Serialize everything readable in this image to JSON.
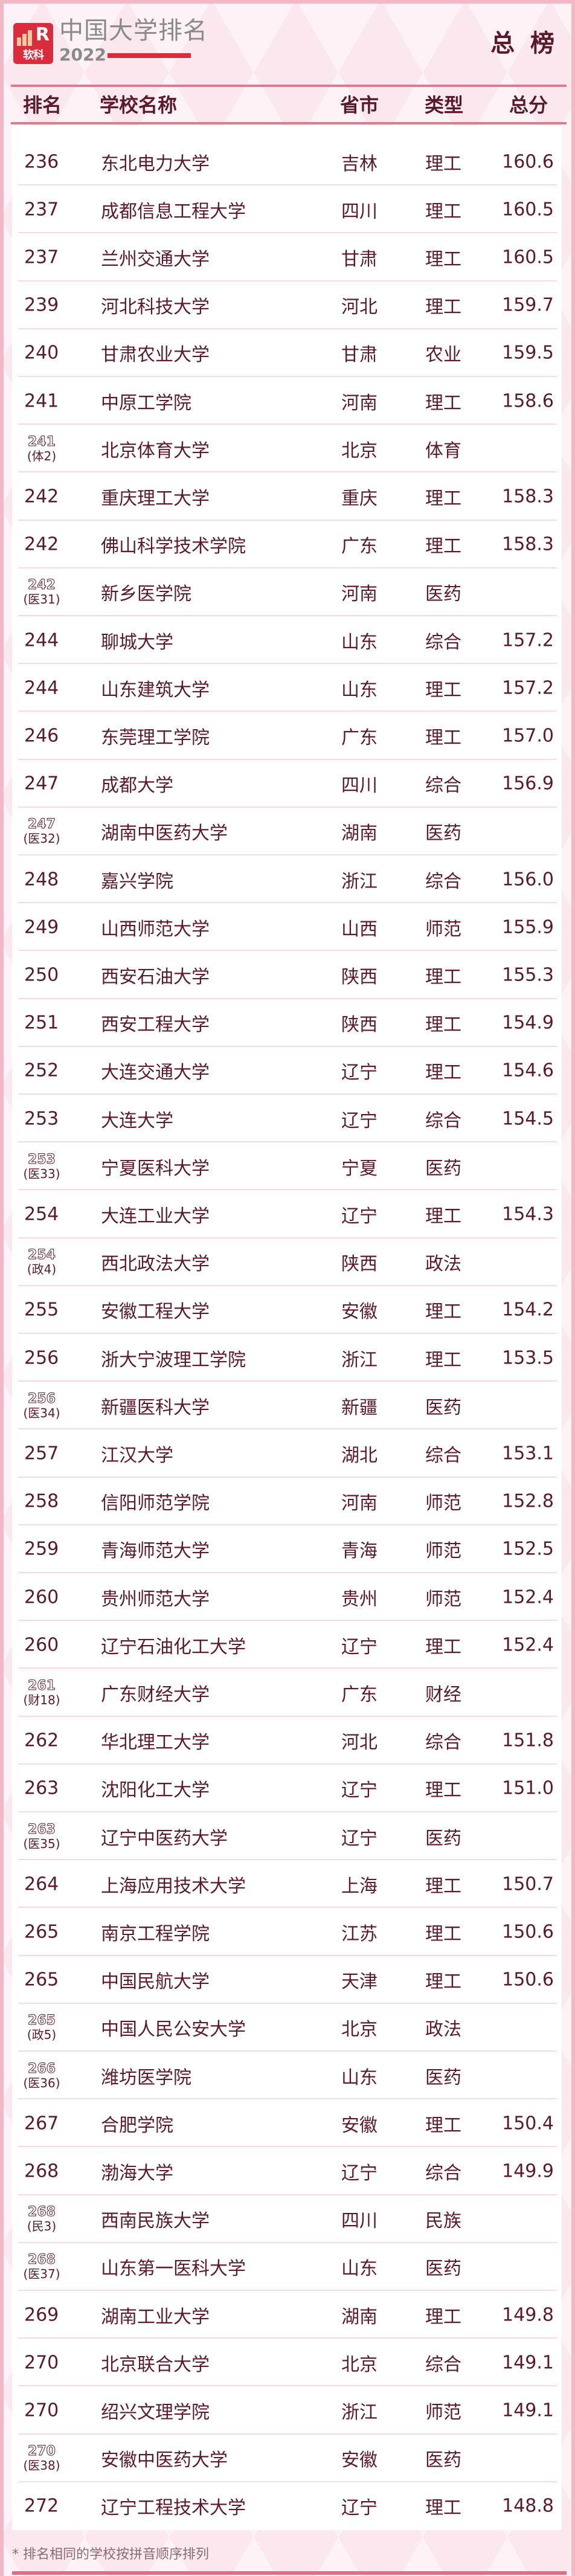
{
  "header": {
    "logo_text": "软科",
    "title": "中国大学排名",
    "year": "2022",
    "board": "总 榜"
  },
  "columns": {
    "rank": "排名",
    "name": "学校名称",
    "province": "省市",
    "type": "类型",
    "score": "总分"
  },
  "rows": [
    {
      "rank": "236",
      "name": "东北电力大学",
      "province": "吉林",
      "type": "理工",
      "score": "160.6"
    },
    {
      "rank": "237",
      "name": "成都信息工程大学",
      "province": "四川",
      "type": "理工",
      "score": "160.5"
    },
    {
      "rank": "237",
      "name": "兰州交通大学",
      "province": "甘肃",
      "type": "理工",
      "score": "160.5"
    },
    {
      "rank": "239",
      "name": "河北科技大学",
      "province": "河北",
      "type": "理工",
      "score": "159.7"
    },
    {
      "rank": "240",
      "name": "甘肃农业大学",
      "province": "甘肃",
      "type": "农业",
      "score": "159.5"
    },
    {
      "rank": "241",
      "name": "中原工学院",
      "province": "河南",
      "type": "理工",
      "score": "158.6"
    },
    {
      "rank": "241",
      "sub": "(体2)",
      "name": "北京体育大学",
      "province": "北京",
      "type": "体育",
      "score": ""
    },
    {
      "rank": "242",
      "name": "重庆理工大学",
      "province": "重庆",
      "type": "理工",
      "score": "158.3"
    },
    {
      "rank": "242",
      "name": "佛山科学技术学院",
      "province": "广东",
      "type": "理工",
      "score": "158.3"
    },
    {
      "rank": "242",
      "sub": "(医31)",
      "name": "新乡医学院",
      "province": "河南",
      "type": "医药",
      "score": ""
    },
    {
      "rank": "244",
      "name": "聊城大学",
      "province": "山东",
      "type": "综合",
      "score": "157.2"
    },
    {
      "rank": "244",
      "name": "山东建筑大学",
      "province": "山东",
      "type": "理工",
      "score": "157.2"
    },
    {
      "rank": "246",
      "name": "东莞理工学院",
      "province": "广东",
      "type": "理工",
      "score": "157.0"
    },
    {
      "rank": "247",
      "name": "成都大学",
      "province": "四川",
      "type": "综合",
      "score": "156.9"
    },
    {
      "rank": "247",
      "sub": "(医32)",
      "name": "湖南中医药大学",
      "province": "湖南",
      "type": "医药",
      "score": ""
    },
    {
      "rank": "248",
      "name": "嘉兴学院",
      "province": "浙江",
      "type": "综合",
      "score": "156.0"
    },
    {
      "rank": "249",
      "name": "山西师范大学",
      "province": "山西",
      "type": "师范",
      "score": "155.9"
    },
    {
      "rank": "250",
      "name": "西安石油大学",
      "province": "陕西",
      "type": "理工",
      "score": "155.3"
    },
    {
      "rank": "251",
      "name": "西安工程大学",
      "province": "陕西",
      "type": "理工",
      "score": "154.9"
    },
    {
      "rank": "252",
      "name": "大连交通大学",
      "province": "辽宁",
      "type": "理工",
      "score": "154.6"
    },
    {
      "rank": "253",
      "name": "大连大学",
      "province": "辽宁",
      "type": "综合",
      "score": "154.5"
    },
    {
      "rank": "253",
      "sub": "(医33)",
      "name": "宁夏医科大学",
      "province": "宁夏",
      "type": "医药",
      "score": ""
    },
    {
      "rank": "254",
      "name": "大连工业大学",
      "province": "辽宁",
      "type": "理工",
      "score": "154.3"
    },
    {
      "rank": "254",
      "sub": "(政4)",
      "name": "西北政法大学",
      "province": "陕西",
      "type": "政法",
      "score": ""
    },
    {
      "rank": "255",
      "name": "安徽工程大学",
      "province": "安徽",
      "type": "理工",
      "score": "154.2"
    },
    {
      "rank": "256",
      "name": "浙大宁波理工学院",
      "province": "浙江",
      "type": "理工",
      "score": "153.5"
    },
    {
      "rank": "256",
      "sub": "(医34)",
      "name": "新疆医科大学",
      "province": "新疆",
      "type": "医药",
      "score": ""
    },
    {
      "rank": "257",
      "name": "江汉大学",
      "province": "湖北",
      "type": "综合",
      "score": "153.1"
    },
    {
      "rank": "258",
      "name": "信阳师范学院",
      "province": "河南",
      "type": "师范",
      "score": "152.8"
    },
    {
      "rank": "259",
      "name": "青海师范大学",
      "province": "青海",
      "type": "师范",
      "score": "152.5"
    },
    {
      "rank": "260",
      "name": "贵州师范大学",
      "province": "贵州",
      "type": "师范",
      "score": "152.4"
    },
    {
      "rank": "260",
      "name": "辽宁石油化工大学",
      "province": "辽宁",
      "type": "理工",
      "score": "152.4"
    },
    {
      "rank": "261",
      "sub": "(财18)",
      "name": "广东财经大学",
      "province": "广东",
      "type": "财经",
      "score": ""
    },
    {
      "rank": "262",
      "name": "华北理工大学",
      "province": "河北",
      "type": "综合",
      "score": "151.8"
    },
    {
      "rank": "263",
      "name": "沈阳化工大学",
      "province": "辽宁",
      "type": "理工",
      "score": "151.0"
    },
    {
      "rank": "263",
      "sub": "(医35)",
      "name": "辽宁中医药大学",
      "province": "辽宁",
      "type": "医药",
      "score": ""
    },
    {
      "rank": "264",
      "name": "上海应用技术大学",
      "province": "上海",
      "type": "理工",
      "score": "150.7"
    },
    {
      "rank": "265",
      "name": "南京工程学院",
      "province": "江苏",
      "type": "理工",
      "score": "150.6"
    },
    {
      "rank": "265",
      "name": "中国民航大学",
      "province": "天津",
      "type": "理工",
      "score": "150.6"
    },
    {
      "rank": "265",
      "sub": "(政5)",
      "name": "中国人民公安大学",
      "province": "北京",
      "type": "政法",
      "score": ""
    },
    {
      "rank": "266",
      "sub": "(医36)",
      "name": "潍坊医学院",
      "province": "山东",
      "type": "医药",
      "score": ""
    },
    {
      "rank": "267",
      "name": "合肥学院",
      "province": "安徽",
      "type": "理工",
      "score": "150.4"
    },
    {
      "rank": "268",
      "name": "渤海大学",
      "province": "辽宁",
      "type": "综合",
      "score": "149.9"
    },
    {
      "rank": "268",
      "sub": "(民3)",
      "name": "西南民族大学",
      "province": "四川",
      "type": "民族",
      "score": ""
    },
    {
      "rank": "268",
      "sub": "(医37)",
      "name": "山东第一医科大学",
      "province": "山东",
      "type": "医药",
      "score": ""
    },
    {
      "rank": "269",
      "name": "湖南工业大学",
      "province": "湖南",
      "type": "理工",
      "score": "149.8"
    },
    {
      "rank": "270",
      "name": "北京联合大学",
      "province": "北京",
      "type": "综合",
      "score": "149.1"
    },
    {
      "rank": "270",
      "name": "绍兴文理学院",
      "province": "浙江",
      "type": "师范",
      "score": "149.1"
    },
    {
      "rank": "270",
      "sub": "(医38)",
      "name": "安徽中医药大学",
      "province": "安徽",
      "type": "医药",
      "score": ""
    },
    {
      "rank": "272",
      "name": "辽宁工程技术大学",
      "province": "辽宁",
      "type": "理工",
      "score": "148.8"
    }
  ],
  "footnote": "* 排名相同的学校按拼音顺序排列",
  "colors": {
    "accent": "#d92d3d",
    "text": "#5a1a2c",
    "rule": "#d77e93",
    "background": "#fbe8ee"
  }
}
